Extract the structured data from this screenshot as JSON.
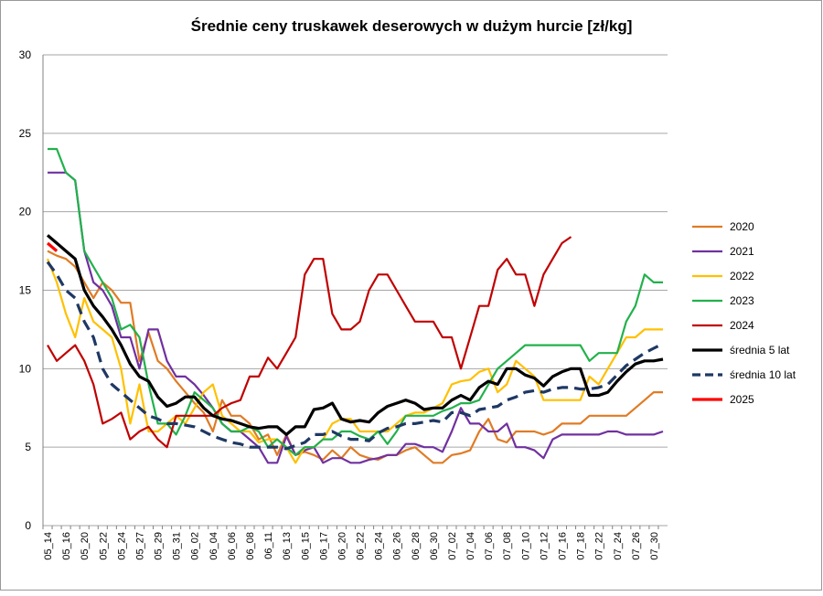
{
  "chart_data": {
    "type": "line",
    "title": "Średnie ceny truskawek deserowych w dużym hurcie [zł/kg]",
    "categories": [
      "05_14",
      null,
      "05_16",
      null,
      "05_20",
      null,
      "05_22",
      null,
      "05_24",
      null,
      "05_27",
      null,
      "05_29",
      null,
      "05_31",
      null,
      "06_02",
      null,
      "06_04",
      null,
      "06_06",
      null,
      "06_08",
      null,
      "06_11",
      null,
      "06_13",
      null,
      "06_15",
      null,
      "06_17",
      null,
      "06_20",
      null,
      "06_22",
      null,
      "06_24",
      null,
      "06_26",
      null,
      "06_28",
      null,
      "06_30",
      null,
      "07_02",
      null,
      "07_04",
      null,
      "07_06",
      null,
      "07_08",
      null,
      "07_10",
      null,
      "07_12",
      null,
      "07_16",
      null,
      "07_18",
      null,
      "07_22",
      null,
      "07_24",
      null,
      "07_26",
      null,
      "07_30",
      null
    ],
    "ylim": [
      0,
      30
    ],
    "yticks": [
      0,
      5,
      10,
      15,
      20,
      25,
      30
    ],
    "grid": true,
    "legend": "right",
    "series": [
      {
        "name": "2020",
        "color": "#e07b24",
        "values": [
          17.5,
          17.2,
          17,
          16.5,
          15.5,
          14.5,
          15.5,
          15,
          14.2,
          14.2,
          10.5,
          12.3,
          10.5,
          10,
          9.2,
          8.5,
          7.8,
          7.2,
          6,
          8,
          7,
          7,
          6.5,
          5.5,
          5.8,
          4.5,
          5.8,
          4.5,
          4.7,
          4.5,
          4.2,
          4.8,
          4.3,
          5,
          4.5,
          4.3,
          4.2,
          4.5,
          4.5,
          4.8,
          5,
          4.5,
          4,
          4,
          4.5,
          4.6,
          4.8,
          6,
          6.8,
          5.5,
          5.3,
          6,
          6,
          6,
          5.8,
          6,
          6.5,
          6.5,
          6.5,
          7,
          7,
          7,
          7,
          7,
          7.5,
          8,
          8.5,
          8.5
        ]
      },
      {
        "name": "2021",
        "color": "#7030a0",
        "values": [
          22.5,
          22.5,
          22.5,
          22,
          17.5,
          15.5,
          15,
          14,
          12,
          12,
          10,
          12.5,
          12.5,
          10.5,
          9.5,
          9.5,
          9,
          8.3,
          7.5,
          6.5,
          6,
          6,
          5.5,
          5,
          4,
          4,
          5.7,
          4.5,
          4.8,
          5,
          4,
          4.3,
          4.3,
          4,
          4,
          4.2,
          4.3,
          4.5,
          4.5,
          5.2,
          5.2,
          5,
          5,
          4.7,
          6,
          7.5,
          6.5,
          6.5,
          6,
          6,
          6.5,
          5,
          5,
          4.8,
          4.3,
          5.5,
          5.8,
          5.8,
          5.8,
          5.8,
          5.8,
          6,
          6,
          5.8,
          5.8,
          5.8,
          5.8,
          6
        ]
      },
      {
        "name": "2022",
        "color": "#ffc000",
        "values": [
          17,
          15.5,
          13.5,
          12,
          14.5,
          13,
          12.5,
          12,
          10,
          6.5,
          9,
          6,
          6,
          6.5,
          7,
          6.5,
          7.5,
          8.5,
          9,
          7,
          6.5,
          6,
          6,
          5.3,
          5.5,
          5.5,
          5,
          4,
          5,
          5,
          5.5,
          6.5,
          6.8,
          6.8,
          6,
          6,
          6,
          6,
          6.5,
          7,
          7.2,
          7.2,
          7.5,
          7.8,
          9,
          9.2,
          9.3,
          9.8,
          10,
          8.5,
          9,
          10.5,
          10,
          9.5,
          8,
          8,
          8,
          8,
          8,
          9.5,
          9,
          10,
          11,
          12,
          12,
          12.5,
          12.5,
          12.5
        ]
      },
      {
        "name": "2023",
        "color": "#22b14c",
        "values": [
          24,
          24,
          22.5,
          22,
          17.5,
          16.5,
          15.5,
          14.5,
          12.5,
          12.8,
          12,
          9,
          6.5,
          6.5,
          5.8,
          7,
          8.5,
          8,
          7.5,
          6.5,
          6,
          6,
          6.3,
          6,
          5,
          5.5,
          5,
          4.5,
          5,
          5,
          5.5,
          5.5,
          6,
          6,
          5.7,
          5.5,
          6,
          5.2,
          6,
          7,
          7,
          7,
          7,
          7.3,
          7.5,
          7.8,
          7.8,
          8,
          9,
          10,
          10.5,
          11,
          11.5,
          11.5,
          11.5,
          11.5,
          11.5,
          11.5,
          11.5,
          10.5,
          11,
          11,
          11,
          13,
          14,
          16,
          15.5,
          15.5
        ]
      },
      {
        "name": "2024",
        "color": "#c00000",
        "values": [
          11.5,
          10.5,
          11,
          11.5,
          10.5,
          9,
          6.5,
          6.8,
          7.2,
          5.5,
          6,
          6.3,
          5.5,
          5,
          7,
          7,
          7,
          7,
          7,
          7.5,
          7.8,
          8,
          9.5,
          9.5,
          10.7,
          10,
          11,
          12,
          16,
          17,
          17,
          13.5,
          12.5,
          12.5,
          13,
          15,
          16,
          16,
          15,
          14,
          13,
          13,
          13,
          12,
          12,
          10,
          12,
          14,
          14,
          16.3,
          17,
          16,
          16,
          14,
          16,
          17,
          18,
          18.4,
          null,
          null,
          null,
          null,
          null,
          null,
          null,
          null,
          null,
          null
        ]
      },
      {
        "name": "średnia 5 lat",
        "color": "#000000",
        "values": [
          18.5,
          18,
          17.5,
          17,
          15,
          14,
          13.3,
          12.5,
          11.5,
          10.3,
          9.5,
          9.2,
          8.2,
          7.6,
          7.8,
          8.2,
          8.2,
          7.5,
          7,
          6.8,
          6.7,
          6.5,
          6.3,
          6.2,
          6.3,
          6.3,
          5.8,
          6.3,
          6.3,
          7.4,
          7.5,
          7.8,
          6.8,
          6.6,
          6.7,
          6.6,
          7.2,
          7.6,
          7.8,
          8,
          7.8,
          7.4,
          7.5,
          7.5,
          8,
          8.3,
          8,
          8.8,
          9.2,
          9,
          10,
          10,
          9.6,
          9.4,
          8.9,
          9.5,
          9.8,
          10,
          10,
          8.3,
          8.3,
          8.5,
          9.2,
          9.8,
          10.3,
          10.5,
          10.5,
          10.6
        ]
      },
      {
        "name": "średnia 10 lat",
        "color": "#1f3864",
        "dash": true,
        "values": [
          16.8,
          16,
          15,
          14.5,
          13,
          12,
          10,
          9,
          8.5,
          8,
          7.5,
          7,
          6.8,
          6.5,
          6.5,
          6.4,
          6.3,
          6,
          5.7,
          5.5,
          5.3,
          5.2,
          5,
          5,
          5,
          5,
          4.9,
          5.1,
          5.3,
          5.8,
          5.8,
          6,
          5.7,
          5.5,
          5.5,
          5.4,
          5.9,
          6.2,
          6.3,
          6.5,
          6.5,
          6.6,
          6.7,
          6.6,
          7.2,
          7.2,
          7,
          7.4,
          7.5,
          7.6,
          8,
          8.2,
          8.5,
          8.6,
          8.5,
          8.7,
          8.8,
          8.8,
          8.7,
          8.7,
          8.8,
          9,
          9.6,
          10.2,
          10.6,
          11,
          11.3,
          11.6
        ]
      },
      {
        "name": "2025",
        "color": "#ff0000",
        "values": [
          18,
          17.5,
          null,
          null,
          null,
          null,
          null,
          null,
          null,
          null,
          null,
          null,
          null,
          null,
          null,
          null,
          null,
          null,
          null,
          null,
          null,
          null,
          null,
          null,
          null,
          null,
          null,
          null,
          null,
          null,
          null,
          null,
          null,
          null,
          null,
          null,
          null,
          null,
          null,
          null,
          null,
          null,
          null,
          null,
          null,
          null,
          null,
          null,
          null,
          null,
          null,
          null,
          null,
          null,
          null,
          null,
          null,
          null,
          null,
          null,
          null,
          null,
          null,
          null,
          null,
          null,
          null,
          null
        ]
      }
    ]
  }
}
